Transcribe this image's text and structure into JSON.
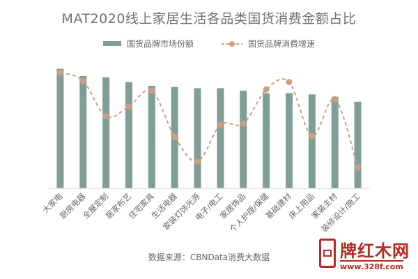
{
  "chart_data": {
    "type": "bar",
    "title": "MAT2020线上家居生活各品类国货消费金额占比",
    "categories": [
      "大家电",
      "厨房电器",
      "全屋定制",
      "居家布艺",
      "住宅家具",
      "生活电器",
      "家装灯饰光源",
      "电子/电工",
      "家居饰品",
      "个人护理/保健",
      "基础建材",
      "床上用品",
      "家装主材",
      "装修设计/施工"
    ],
    "series": [
      {
        "name": "国货品牌市场份额",
        "type": "bar",
        "color": "#7f9e97",
        "values": [
          0.98,
          0.92,
          0.91,
          0.87,
          0.84,
          0.83,
          0.82,
          0.82,
          0.8,
          0.78,
          0.78,
          0.77,
          0.75,
          0.71
        ]
      },
      {
        "name": "国货品牌消费增速",
        "type": "line",
        "style": "dashed-smooth",
        "color": "#c9a083",
        "values": [
          0.95,
          0.88,
          0.59,
          0.67,
          0.8,
          0.42,
          0.22,
          0.52,
          0.53,
          0.81,
          0.87,
          0.43,
          0.73,
          0.17
        ]
      }
    ],
    "ylim": [
      0,
      1
    ],
    "grid": false,
    "legend": "top-center",
    "xlabel": "",
    "ylabel": ""
  },
  "source_note": "数据来源：CBNData消费大数据",
  "watermark": {
    "brand": "牌红木网",
    "url": "www.328f.com"
  }
}
